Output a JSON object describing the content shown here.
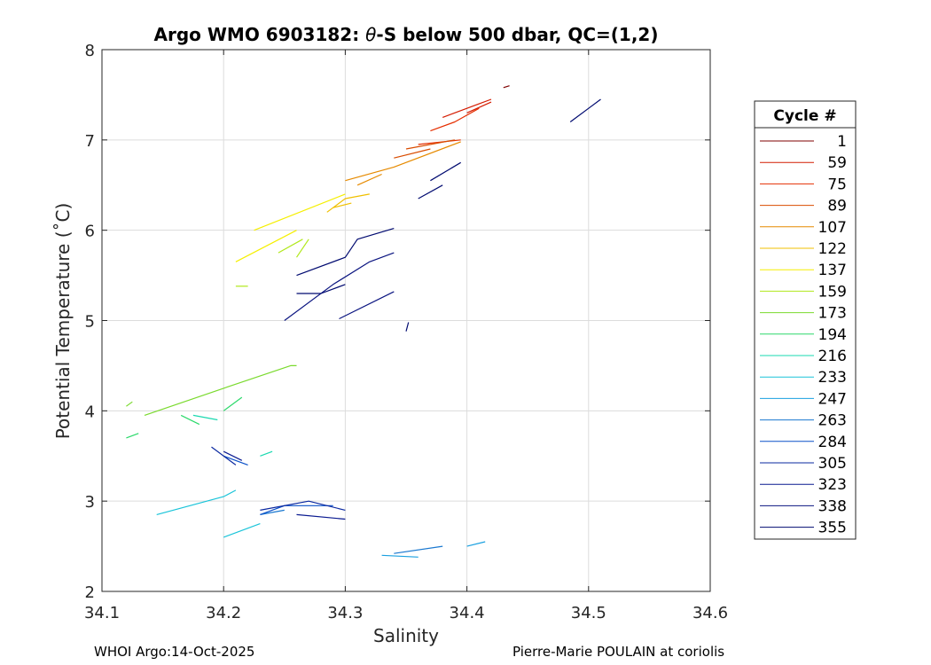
{
  "chart_data": {
    "type": "line",
    "title_prefix": "Argo WMO 6903182: ",
    "title_symbol": "θ",
    "title_suffix": "-S below 500 dbar,  QC=(1,2)",
    "xlabel": "Salinity",
    "ylabel": "Potential Temperature (˚C)",
    "xlim": [
      34.1,
      34.6
    ],
    "ylim": [
      2,
      8
    ],
    "xticks": [
      "34.1",
      "34.2",
      "34.3",
      "34.4",
      "34.5",
      "34.6"
    ],
    "yticks": [
      "2",
      "3",
      "4",
      "5",
      "6",
      "7",
      "8"
    ],
    "grid": true,
    "legend": {
      "title": "Cycle #",
      "placement": "right, outside plot",
      "entries": [
        {
          "label": "1",
          "color": "#7f0000"
        },
        {
          "label": "59",
          "color": "#d41b00"
        },
        {
          "label": "75",
          "color": "#e52e00"
        },
        {
          "label": "89",
          "color": "#d94c00"
        },
        {
          "label": "107",
          "color": "#e68a00"
        },
        {
          "label": "122",
          "color": "#f0c000"
        },
        {
          "label": "137",
          "color": "#f5ef00"
        },
        {
          "label": "159",
          "color": "#b0e81a"
        },
        {
          "label": "173",
          "color": "#7ada2e"
        },
        {
          "label": "194",
          "color": "#2bd96a"
        },
        {
          "label": "216",
          "color": "#1ad9b0"
        },
        {
          "label": "233",
          "color": "#1ac4d9"
        },
        {
          "label": "247",
          "color": "#1aa0e0"
        },
        {
          "label": "263",
          "color": "#1a78d0"
        },
        {
          "label": "284",
          "color": "#0a50c8"
        },
        {
          "label": "305",
          "color": "#0a28a0"
        },
        {
          "label": "323",
          "color": "#0a1a90"
        },
        {
          "label": "338",
          "color": "#0a1480"
        },
        {
          "label": "355",
          "color": "#000a70"
        }
      ]
    },
    "series": [
      {
        "name": "1",
        "color": "#7f0000",
        "segments": [
          [
            [
              34.43,
              7.58
            ],
            [
              34.435,
              7.6
            ]
          ]
        ]
      },
      {
        "name": "59",
        "color": "#d41b00",
        "segments": [
          [
            [
              34.38,
              7.25
            ],
            [
              34.41,
              7.4
            ],
            [
              34.42,
              7.45
            ]
          ],
          [
            [
              34.4,
              7.3
            ],
            [
              34.42,
              7.42
            ]
          ]
        ]
      },
      {
        "name": "75",
        "color": "#e52e00",
        "segments": [
          [
            [
              34.37,
              7.1
            ],
            [
              34.39,
              7.2
            ],
            [
              34.41,
              7.35
            ]
          ],
          [
            [
              34.36,
              6.95
            ],
            [
              34.395,
              7.0
            ]
          ]
        ]
      },
      {
        "name": "89",
        "color": "#d94c00",
        "segments": [
          [
            [
              34.35,
              6.9
            ],
            [
              34.39,
              7.0
            ]
          ],
          [
            [
              34.34,
              6.8
            ],
            [
              34.37,
              6.9
            ]
          ]
        ]
      },
      {
        "name": "107",
        "color": "#e68a00",
        "segments": [
          [
            [
              34.3,
              6.55
            ],
            [
              34.34,
              6.7
            ],
            [
              34.395,
              6.98
            ]
          ],
          [
            [
              34.31,
              6.5
            ],
            [
              34.33,
              6.62
            ]
          ]
        ]
      },
      {
        "name": "122",
        "color": "#f0c000",
        "segments": [
          [
            [
              34.285,
              6.2
            ],
            [
              34.3,
              6.35
            ],
            [
              34.32,
              6.4
            ]
          ],
          [
            [
              34.29,
              6.25
            ],
            [
              34.305,
              6.3
            ]
          ]
        ]
      },
      {
        "name": "137",
        "color": "#f5ef00",
        "segments": [
          [
            [
              34.225,
              6.0
            ],
            [
              34.3,
              6.4
            ]
          ],
          [
            [
              34.21,
              5.65
            ],
            [
              34.26,
              6.0
            ]
          ]
        ]
      },
      {
        "name": "159",
        "color": "#b0e81a",
        "segments": [
          [
            [
              34.245,
              5.75
            ],
            [
              34.265,
              5.9
            ]
          ],
          [
            [
              34.26,
              5.7
            ],
            [
              34.27,
              5.9
            ]
          ],
          [
            [
              34.21,
              5.38
            ],
            [
              34.22,
              5.38
            ]
          ]
        ]
      },
      {
        "name": "173",
        "color": "#7ada2e",
        "segments": [
          [
            [
              34.135,
              3.95
            ],
            [
              34.2,
              4.25
            ],
            [
              34.255,
              4.5
            ],
            [
              34.26,
              4.5
            ]
          ],
          [
            [
              34.12,
              4.05
            ],
            [
              34.125,
              4.1
            ]
          ]
        ]
      },
      {
        "name": "194",
        "color": "#2bd96a",
        "segments": [
          [
            [
              34.165,
              3.95
            ],
            [
              34.18,
              3.85
            ]
          ],
          [
            [
              34.12,
              3.7
            ],
            [
              34.13,
              3.75
            ]
          ],
          [
            [
              34.2,
              4.0
            ],
            [
              34.215,
              4.15
            ]
          ]
        ]
      },
      {
        "name": "216",
        "color": "#1ad9b0",
        "segments": [
          [
            [
              34.175,
              3.95
            ],
            [
              34.195,
              3.9
            ]
          ],
          [
            [
              34.23,
              3.5
            ],
            [
              34.24,
              3.55
            ]
          ]
        ]
      },
      {
        "name": "233",
        "color": "#1ac4d9",
        "segments": [
          [
            [
              34.145,
              2.85
            ],
            [
              34.2,
              3.05
            ],
            [
              34.21,
              3.12
            ]
          ],
          [
            [
              34.2,
              2.6
            ],
            [
              34.23,
              2.75
            ]
          ]
        ]
      },
      {
        "name": "247",
        "color": "#1aa0e0",
        "segments": [
          [
            [
              34.33,
              2.4
            ],
            [
              34.36,
              2.38
            ]
          ],
          [
            [
              34.4,
              2.5
            ],
            [
              34.415,
              2.55
            ]
          ]
        ]
      },
      {
        "name": "263",
        "color": "#1a78d0",
        "segments": [
          [
            [
              34.34,
              2.42
            ],
            [
              34.38,
              2.5
            ]
          ],
          [
            [
              34.23,
              2.85
            ],
            [
              34.25,
              2.9
            ]
          ]
        ]
      },
      {
        "name": "284",
        "color": "#0a50c8",
        "segments": [
          [
            [
              34.23,
              2.85
            ],
            [
              34.25,
              2.95
            ],
            [
              34.29,
              2.95
            ]
          ],
          [
            [
              34.2,
              3.5
            ],
            [
              34.22,
              3.4
            ]
          ]
        ]
      },
      {
        "name": "305",
        "color": "#0a28a0",
        "segments": [
          [
            [
              34.23,
              2.9
            ],
            [
              34.27,
              3.0
            ],
            [
              34.3,
              2.9
            ]
          ],
          [
            [
              34.19,
              3.6
            ],
            [
              34.21,
              3.4
            ]
          ]
        ]
      },
      {
        "name": "323",
        "color": "#0a1a90",
        "segments": [
          [
            [
              34.2,
              3.55
            ],
            [
              34.215,
              3.45
            ]
          ],
          [
            [
              34.26,
              2.85
            ],
            [
              34.3,
              2.8
            ]
          ]
        ]
      },
      {
        "name": "338",
        "color": "#0a1480",
        "segments": [
          [
            [
              34.25,
              5.0
            ],
            [
              34.29,
              5.4
            ],
            [
              34.32,
              5.65
            ],
            [
              34.34,
              5.75
            ]
          ],
          [
            [
              34.295,
              5.02
            ],
            [
              34.34,
              5.32
            ]
          ]
        ]
      },
      {
        "name": "355",
        "color": "#000a70",
        "segments": [
          [
            [
              34.485,
              7.2
            ],
            [
              34.5,
              7.35
            ],
            [
              34.51,
              7.45
            ]
          ],
          [
            [
              34.36,
              6.35
            ],
            [
              34.38,
              6.5
            ]
          ],
          [
            [
              34.37,
              6.55
            ],
            [
              34.395,
              6.75
            ]
          ],
          [
            [
              34.26,
              5.5
            ],
            [
              34.3,
              5.7
            ],
            [
              34.31,
              5.9
            ],
            [
              34.34,
              6.02
            ]
          ],
          [
            [
              34.26,
              5.3
            ],
            [
              34.28,
              5.3
            ],
            [
              34.3,
              5.4
            ]
          ],
          [
            [
              34.35,
              4.88
            ],
            [
              34.352,
              4.98
            ]
          ]
        ]
      }
    ]
  },
  "footer": {
    "left": "WHOI Argo:14-Oct-2025",
    "right": "Pierre-Marie POULAIN at coriolis"
  }
}
